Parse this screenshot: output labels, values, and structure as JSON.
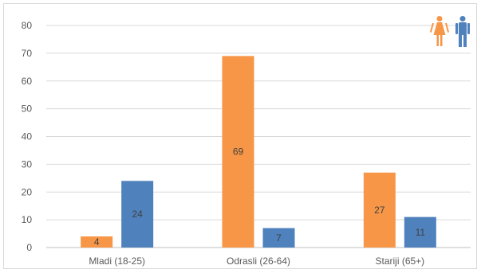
{
  "chart_data": {
    "type": "bar",
    "categories": [
      "Mladi (18-25)",
      "Odrasli (26-64)",
      "Stariji (65+)"
    ],
    "series": [
      {
        "values": [
          4,
          69,
          27
        ],
        "color": "#f79646"
      },
      {
        "values": [
          24,
          7,
          11
        ],
        "color": "#4f81bd"
      }
    ],
    "ylim": [
      0,
      80
    ],
    "yticks": [
      0,
      10,
      20,
      30,
      40,
      50,
      60,
      70,
      80
    ],
    "grid": true,
    "legend": "top-right",
    "legend_icons": [
      {
        "icon": "woman-icon",
        "color": "#f79646"
      },
      {
        "icon": "man-icon",
        "color": "#4f81bd"
      }
    ]
  }
}
